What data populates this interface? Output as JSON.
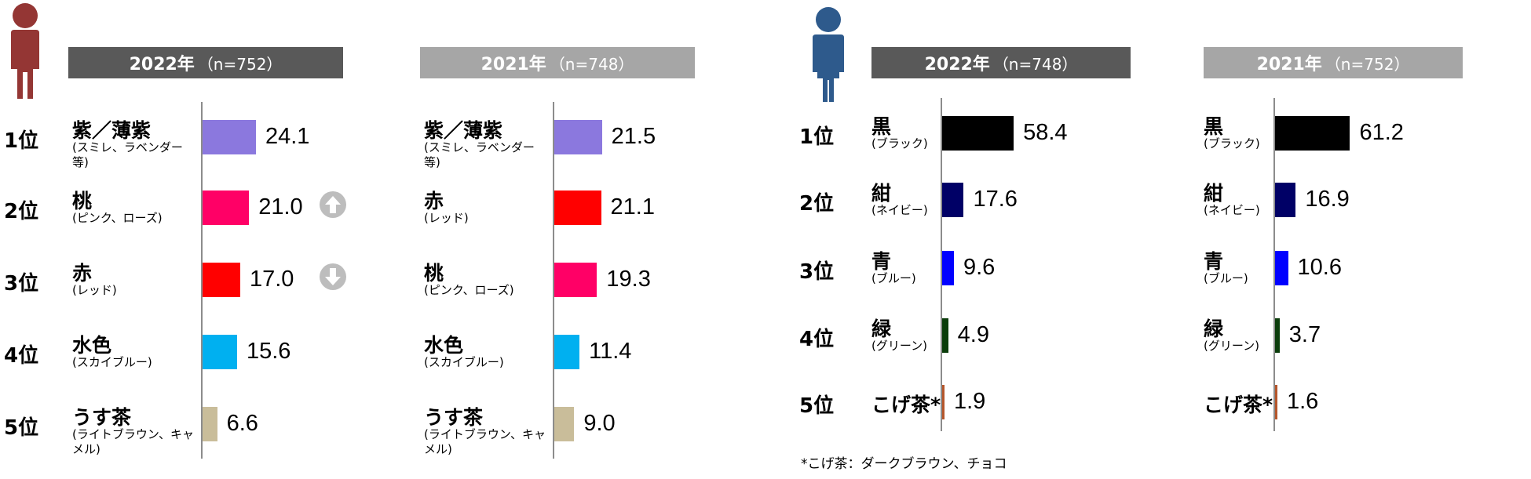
{
  "ranks": [
    "1位",
    "2位",
    "3位",
    "4位",
    "5位"
  ],
  "footnote": "*こげ茶：ダークブラウン、チョコ",
  "chart_data": [
    {
      "type": "bar",
      "panel": "female-2022",
      "header": {
        "year": "2022年",
        "n": "（n=752）",
        "bg": "#595959"
      },
      "categories": [
        "紫／薄紫",
        "桃",
        "赤",
        "水色",
        "うす茶"
      ],
      "subs": [
        "(スミレ、ラベンダー等)",
        "(ピンク、ローズ)",
        "(レッド)",
        "(スカイブルー)",
        "(ライトブラウン、キャメル)"
      ],
      "values": [
        24.1,
        21.0,
        17.0,
        15.6,
        6.6
      ],
      "labels": [
        "24.1",
        "21.0",
        "17.0",
        "15.6",
        "6.6"
      ],
      "colors": [
        "#8B78DE",
        "#FF0066",
        "#FF0000",
        "#00B0F0",
        "#C9BD9A"
      ],
      "trend": [
        "",
        "up",
        "down",
        "",
        ""
      ]
    },
    {
      "type": "bar",
      "panel": "female-2021",
      "header": {
        "year": "2021年",
        "n": "（n=748）",
        "bg": "#a6a6a6"
      },
      "categories": [
        "紫／薄紫",
        "赤",
        "桃",
        "水色",
        "うす茶"
      ],
      "subs": [
        "(スミレ、ラベンダー等)",
        "(レッド)",
        "(ピンク、ローズ)",
        "(スカイブルー)",
        "(ライトブラウン、キャメル)"
      ],
      "values": [
        21.5,
        21.1,
        19.3,
        11.4,
        9.0
      ],
      "labels": [
        "21.5",
        "21.1",
        "19.3",
        "11.4",
        "9.0"
      ],
      "colors": [
        "#8B78DE",
        "#FF0000",
        "#FF0066",
        "#00B0F0",
        "#C9BD9A"
      ]
    },
    {
      "type": "bar",
      "panel": "male-2022",
      "header": {
        "year": "2022年",
        "n": "（n=748）",
        "bg": "#595959"
      },
      "categories": [
        "黒",
        "紺",
        "青",
        "緑",
        "こげ茶*"
      ],
      "subs": [
        "(ブラック)",
        "(ネイビー)",
        "(ブルー)",
        "(グリーン)",
        ""
      ],
      "values": [
        58.4,
        17.6,
        9.6,
        4.9,
        1.9
      ],
      "labels": [
        "58.4",
        "17.6",
        "9.6",
        "4.9",
        "1.9"
      ],
      "colors": [
        "#000000",
        "#000066",
        "#0000FF",
        "#0B3D0B",
        "#B5562B"
      ]
    },
    {
      "type": "bar",
      "panel": "male-2021",
      "header": {
        "year": "2021年",
        "n": "（n=752）",
        "bg": "#a6a6a6"
      },
      "categories": [
        "黒",
        "紺",
        "青",
        "緑",
        "こげ茶*"
      ],
      "subs": [
        "(ブラック)",
        "(ネイビー)",
        "(ブルー)",
        "(グリーン)",
        ""
      ],
      "values": [
        61.2,
        16.9,
        10.6,
        3.7,
        1.6
      ],
      "labels": [
        "61.2",
        "16.9",
        "10.6",
        "3.7",
        "1.6"
      ],
      "colors": [
        "#000000",
        "#000066",
        "#0000FF",
        "#0B3D0B",
        "#B5562B"
      ]
    }
  ]
}
